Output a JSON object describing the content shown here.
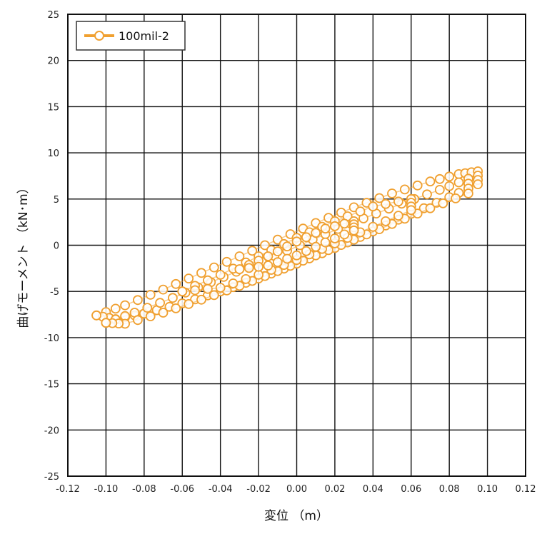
{
  "chart_data": {
    "type": "scatter",
    "xlabel": "変位 （m）",
    "ylabel": "曲げモーメント （kN･m）",
    "xlim": [
      -0.12,
      0.12
    ],
    "ylim": [
      -25,
      25
    ],
    "x_ticks": [
      -0.12,
      -0.1,
      -0.08,
      -0.06,
      -0.04,
      -0.02,
      0.0,
      0.02,
      0.04,
      0.06,
      0.08,
      0.1,
      0.12
    ],
    "x_tick_labels": [
      "-0.12",
      "-0.10",
      "-0.08",
      "-0.06",
      "-0.04",
      "-0.02",
      "0.00",
      "0.02",
      "0.04",
      "0.06",
      "0.08",
      "0.10",
      "0.12"
    ],
    "y_ticks": [
      25,
      20,
      15,
      10,
      5,
      0,
      -5,
      -10,
      -15,
      -20,
      -25
    ],
    "y_tick_labels": [
      "25",
      "20",
      "15",
      "10",
      "5",
      "0",
      "-5",
      "-10",
      "-15",
      "-20",
      "-25"
    ],
    "grid": true,
    "legend_position": "top-left",
    "series": [
      {
        "name": "100mil-2",
        "color": "#f0a030",
        "marker": "hollow-circle",
        "loops": [
          {
            "amp": 0.095,
            "upper": [
              [
                -0.105,
                -7.6
              ],
              [
                -0.09,
                -6.5
              ],
              [
                -0.07,
                -4.8
              ],
              [
                -0.05,
                -3.0
              ],
              [
                -0.03,
                -1.2
              ],
              [
                -0.01,
                0.6
              ],
              [
                0.01,
                2.4
              ],
              [
                0.03,
                4.1
              ],
              [
                0.05,
                5.6
              ],
              [
                0.07,
                6.9
              ],
              [
                0.085,
                7.7
              ],
              [
                0.095,
                8.0
              ]
            ],
            "lower": [
              [
                0.095,
                6.6
              ],
              [
                0.08,
                5.2
              ],
              [
                0.06,
                3.4
              ],
              [
                0.04,
                1.5
              ],
              [
                0.02,
                -0.3
              ],
              [
                0.0,
                -2.0
              ],
              [
                -0.02,
                -3.6
              ],
              [
                -0.04,
                -5.0
              ],
              [
                -0.06,
                -6.3
              ],
              [
                -0.08,
                -7.4
              ],
              [
                -0.095,
                -8.0
              ],
              [
                -0.105,
                -7.6
              ]
            ]
          },
          {
            "amp": 0.09,
            "upper": [
              [
                -0.1,
                -8.4
              ],
              [
                -0.085,
                -7.3
              ],
              [
                -0.065,
                -5.7
              ],
              [
                -0.045,
                -4.0
              ],
              [
                -0.025,
                -2.3
              ],
              [
                -0.005,
                -0.6
              ],
              [
                0.015,
                1.2
              ],
              [
                0.035,
                2.9
              ],
              [
                0.055,
                4.5
              ],
              [
                0.075,
                6.0
              ],
              [
                0.09,
                7.2
              ]
            ],
            "lower": [
              [
                0.09,
                5.6
              ],
              [
                0.07,
                4.0
              ],
              [
                0.05,
                2.3
              ],
              [
                0.03,
                0.6
              ],
              [
                0.01,
                -1.1
              ],
              [
                -0.01,
                -2.8
              ],
              [
                -0.03,
                -4.4
              ],
              [
                -0.05,
                -5.9
              ],
              [
                -0.07,
                -7.3
              ],
              [
                -0.09,
                -8.5
              ],
              [
                -0.1,
                -8.4
              ]
            ]
          },
          {
            "amp": 0.06,
            "upper": [
              [
                -0.06,
                -5.0
              ],
              [
                -0.04,
                -3.2
              ],
              [
                -0.02,
                -1.2
              ],
              [
                0.0,
                0.8
              ],
              [
                0.02,
                2.6
              ],
              [
                0.04,
                4.2
              ],
              [
                0.06,
                5.0
              ]
            ],
            "lower": [
              [
                0.06,
                3.8
              ],
              [
                0.04,
                2.0
              ],
              [
                0.02,
                0.2
              ],
              [
                0.0,
                -1.6
              ],
              [
                -0.02,
                -3.2
              ],
              [
                -0.04,
                -4.6
              ],
              [
                -0.06,
                -5.0
              ]
            ]
          },
          {
            "amp": 0.03,
            "upper": [
              [
                -0.03,
                -2.6
              ],
              [
                -0.015,
                -1.2
              ],
              [
                0.0,
                0.4
              ],
              [
                0.015,
                1.8
              ],
              [
                0.03,
                2.6
              ]
            ],
            "lower": [
              [
                0.03,
                1.6
              ],
              [
                0.015,
                0.3
              ],
              [
                0.0,
                -1.1
              ],
              [
                -0.015,
                -2.2
              ],
              [
                -0.03,
                -2.6
              ]
            ]
          }
        ]
      }
    ]
  }
}
